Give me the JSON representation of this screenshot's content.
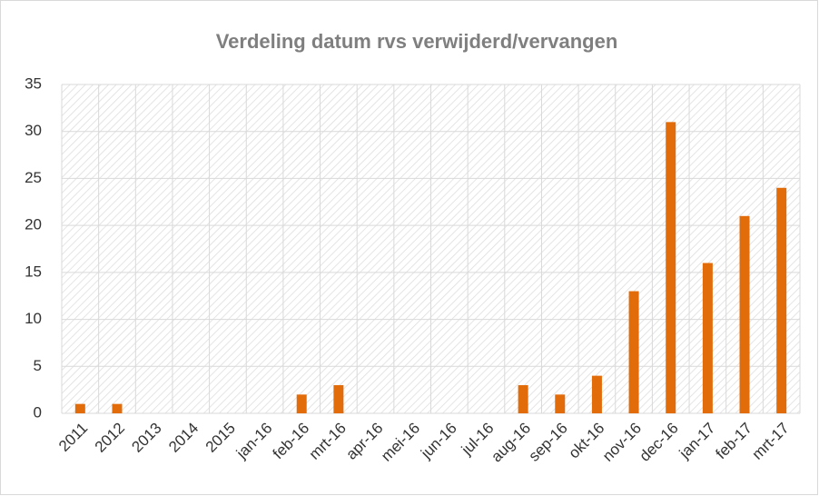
{
  "chart_data": {
    "type": "bar",
    "title": "Verdeling datum rvs verwijderd/vervangen",
    "categories": [
      "2011",
      "2012",
      "2013",
      "2014",
      "2015",
      "jan-16",
      "feb-16",
      "mrt-16",
      "apr-16",
      "mei-16",
      "jun-16",
      "jul-16",
      "aug-16",
      "sep-16",
      "okt-16",
      "nov-16",
      "dec-16",
      "jan-17",
      "feb-17",
      "mrt-17"
    ],
    "values": [
      1,
      1,
      0,
      0,
      0,
      0,
      2,
      3,
      0,
      0,
      0,
      0,
      3,
      2,
      4,
      13,
      31,
      16,
      21,
      24
    ],
    "color": "#e36c0a",
    "ylim": [
      0,
      35
    ],
    "yticks": [
      0,
      5,
      10,
      15,
      20,
      25,
      30,
      35
    ],
    "grid": true
  }
}
